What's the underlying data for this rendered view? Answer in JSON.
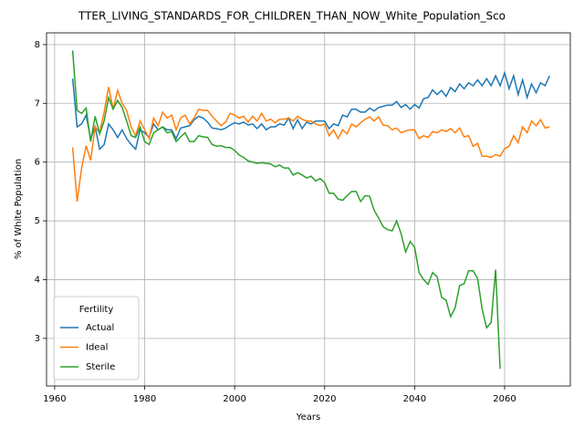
{
  "chart_data": {
    "type": "line",
    "title": "TTER_LIVING_STANDARDS_FOR_CHILDREN_THAN_NOW_White_Population_Sco",
    "xlabel": "Years",
    "ylabel": "% of White Population",
    "legend_title": "Fertility",
    "legend": "lower left",
    "grid": true,
    "xlim": [
      1958.2,
      2074.6
    ],
    "ylim": [
      2.19,
      8.2
    ],
    "xticks": [
      1960,
      1980,
      2000,
      2020,
      2040,
      2060
    ],
    "yticks": [
      3,
      4,
      5,
      6,
      7,
      8
    ],
    "x": [
      1964,
      1965,
      1966,
      1967,
      1968,
      1969,
      1970,
      1971,
      1972,
      1973,
      1974,
      1975,
      1976,
      1977,
      1978,
      1979,
      1980,
      1981,
      1982,
      1983,
      1984,
      1985,
      1986,
      1987,
      1988,
      1989,
      1990,
      1991,
      1992,
      1993,
      1994,
      1995,
      1996,
      1997,
      1998,
      1999,
      2000,
      2001,
      2002,
      2003,
      2004,
      2005,
      2006,
      2007,
      2008,
      2009,
      2010,
      2011,
      2012,
      2013,
      2014,
      2015,
      2016,
      2017,
      2018,
      2019,
      2020,
      2021,
      2022,
      2023,
      2024,
      2025,
      2026,
      2027,
      2028,
      2029,
      2030,
      2031,
      2032,
      2033,
      2034,
      2035,
      2036,
      2037,
      2038,
      2039,
      2040,
      2041,
      2042,
      2043,
      2044,
      2045,
      2046,
      2047,
      2048,
      2049,
      2050,
      2051,
      2052,
      2053,
      2054,
      2055,
      2056,
      2057,
      2058,
      2059,
      2060,
      2061,
      2062,
      2063,
      2064,
      2065,
      2066,
      2067,
      2068,
      2069,
      2070
    ],
    "series": [
      {
        "name": "Actual",
        "color": "#1f77b4",
        "values": [
          7.42,
          6.6,
          6.65,
          6.8,
          6.4,
          6.6,
          6.22,
          6.3,
          6.65,
          6.55,
          6.42,
          6.55,
          6.4,
          6.3,
          6.22,
          6.55,
          6.5,
          6.42,
          6.65,
          6.55,
          6.6,
          6.55,
          6.55,
          6.4,
          6.58,
          6.6,
          6.62,
          6.72,
          6.78,
          6.75,
          6.68,
          6.58,
          6.57,
          6.55,
          6.58,
          6.63,
          6.67,
          6.65,
          6.68,
          6.63,
          6.65,
          6.57,
          6.65,
          6.55,
          6.6,
          6.6,
          6.65,
          6.63,
          6.75,
          6.57,
          6.72,
          6.57,
          6.68,
          6.65,
          6.7,
          6.7,
          6.7,
          6.57,
          6.65,
          6.62,
          6.8,
          6.77,
          6.9,
          6.9,
          6.85,
          6.85,
          6.92,
          6.87,
          6.93,
          6.95,
          6.97,
          6.97,
          7.03,
          6.93,
          6.98,
          6.9,
          6.98,
          6.92,
          7.08,
          7.1,
          7.23,
          7.15,
          7.22,
          7.12,
          7.27,
          7.2,
          7.33,
          7.25,
          7.35,
          7.3,
          7.4,
          7.3,
          7.42,
          7.3,
          7.47,
          7.3,
          7.52,
          7.25,
          7.47,
          7.15,
          7.4,
          7.1,
          7.33,
          7.18,
          7.35,
          7.3,
          7.47
        ]
      },
      {
        "name": "Ideal",
        "color": "#ff7f0e",
        "values": [
          6.25,
          5.33,
          5.9,
          6.28,
          6.03,
          6.6,
          6.5,
          6.85,
          7.28,
          6.9,
          7.22,
          7.0,
          6.88,
          6.6,
          6.45,
          6.7,
          6.55,
          6.4,
          6.75,
          6.62,
          6.85,
          6.75,
          6.8,
          6.55,
          6.75,
          6.8,
          6.65,
          6.75,
          6.9,
          6.88,
          6.88,
          6.78,
          6.7,
          6.62,
          6.68,
          6.83,
          6.8,
          6.75,
          6.78,
          6.68,
          6.78,
          6.7,
          6.83,
          6.7,
          6.73,
          6.67,
          6.73,
          6.73,
          6.75,
          6.7,
          6.78,
          6.73,
          6.7,
          6.7,
          6.65,
          6.62,
          6.65,
          6.45,
          6.55,
          6.4,
          6.55,
          6.48,
          6.65,
          6.6,
          6.67,
          6.73,
          6.77,
          6.7,
          6.77,
          6.63,
          6.62,
          6.55,
          6.58,
          6.5,
          6.53,
          6.55,
          6.55,
          6.4,
          6.45,
          6.42,
          6.52,
          6.5,
          6.55,
          6.52,
          6.57,
          6.5,
          6.58,
          6.43,
          6.45,
          6.27,
          6.32,
          6.1,
          6.1,
          6.08,
          6.13,
          6.1,
          6.23,
          6.27,
          6.45,
          6.33,
          6.6,
          6.5,
          6.7,
          6.62,
          6.72,
          6.58,
          6.6
        ]
      },
      {
        "name": "Sterile",
        "color": "#2ca02c",
        "values": [
          7.9,
          6.88,
          6.83,
          6.92,
          6.35,
          6.78,
          6.48,
          6.7,
          7.1,
          6.9,
          7.05,
          6.93,
          6.7,
          6.45,
          6.42,
          6.6,
          6.35,
          6.3,
          6.5,
          6.55,
          6.6,
          6.5,
          6.52,
          6.35,
          6.43,
          6.5,
          6.35,
          6.35,
          6.45,
          6.43,
          6.42,
          6.3,
          6.27,
          6.28,
          6.25,
          6.25,
          6.2,
          6.12,
          6.08,
          6.02,
          6.0,
          5.98,
          5.99,
          5.98,
          5.97,
          5.92,
          5.95,
          5.9,
          5.9,
          5.78,
          5.82,
          5.78,
          5.73,
          5.76,
          5.68,
          5.72,
          5.65,
          5.47,
          5.47,
          5.37,
          5.35,
          5.43,
          5.5,
          5.5,
          5.33,
          5.43,
          5.42,
          5.18,
          5.05,
          4.9,
          4.85,
          4.83,
          5.0,
          4.78,
          4.47,
          4.65,
          4.55,
          4.12,
          4.0,
          3.92,
          4.12,
          4.05,
          3.7,
          3.65,
          3.37,
          3.52,
          3.9,
          3.93,
          4.15,
          4.15,
          4.02,
          3.5,
          3.18,
          3.27,
          4.17,
          2.48,
          null,
          null,
          null,
          null,
          null,
          null,
          null,
          null,
          null,
          null,
          null
        ]
      }
    ]
  }
}
